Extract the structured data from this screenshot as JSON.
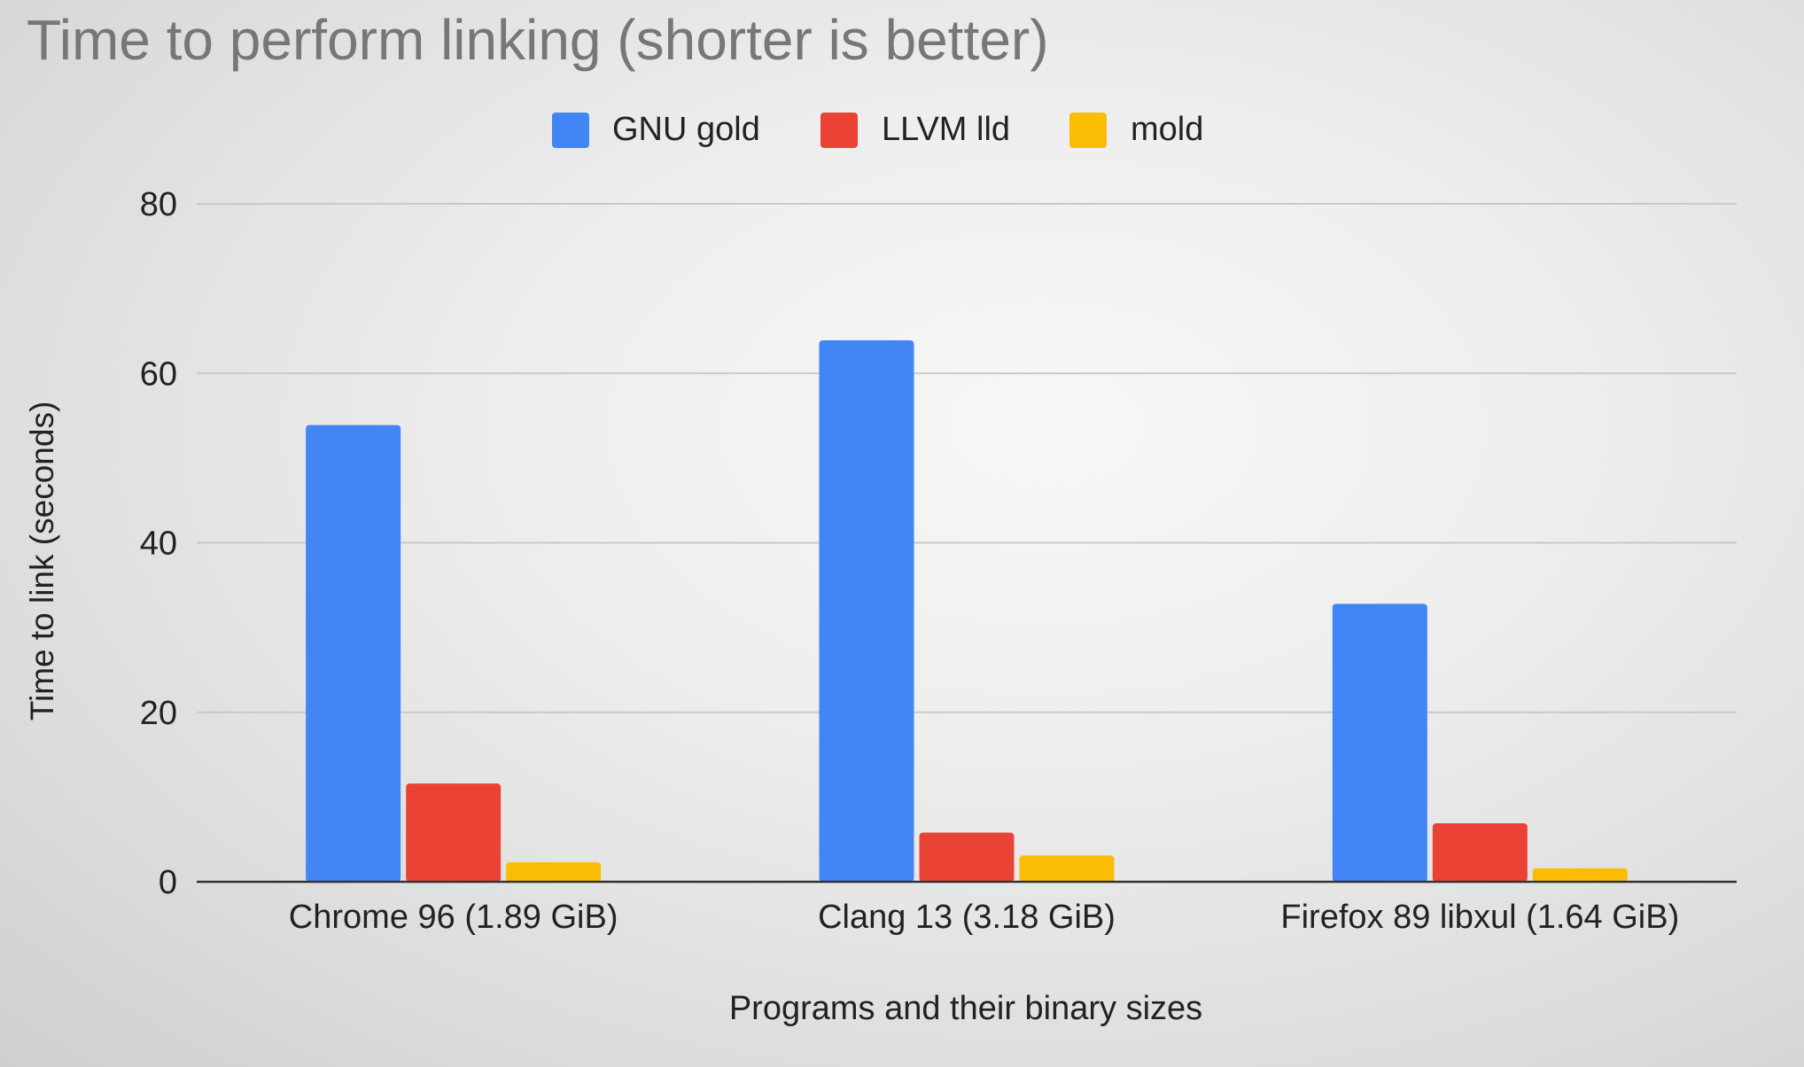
{
  "chart_data": {
    "type": "bar",
    "title": "Time to perform linking (shorter is better)",
    "xlabel": "Programs and their binary sizes",
    "ylabel": "Time to link (seconds)",
    "categories": [
      "Chrome 96 (1.89 GiB)",
      "Clang 13 (3.18 GiB)",
      "Firefox 89 libxul (1.64 GiB)"
    ],
    "series": [
      {
        "name": "GNU gold",
        "values": [
          53.9,
          63.9,
          32.8
        ],
        "color": "#4285f4"
      },
      {
        "name": "LLVM lld",
        "values": [
          11.6,
          5.8,
          6.9
        ],
        "color": "#ea4335"
      },
      {
        "name": "mold",
        "values": [
          2.3,
          3.1,
          1.6
        ],
        "color": "#fbbc04"
      }
    ],
    "ylim": [
      0,
      80
    ],
    "yticks": [
      "0",
      "20",
      "40",
      "60",
      "80"
    ],
    "grid": true,
    "legend": "top-center"
  }
}
